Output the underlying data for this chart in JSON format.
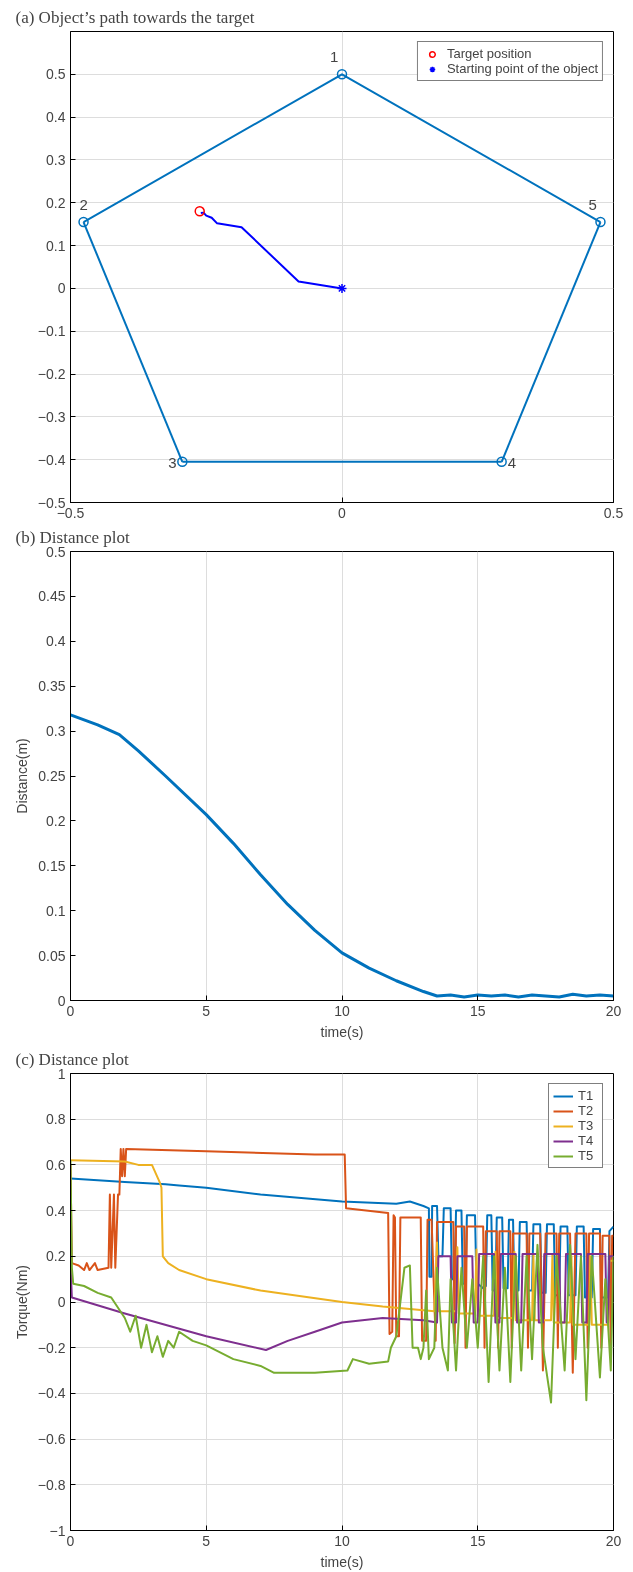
{
  "chart_data": [
    {
      "type": "line",
      "title": "(a) Object’s path towards the target",
      "xlim": [
        -0.5,
        0.5
      ],
      "ylim": [
        -0.5,
        0.6
      ],
      "xticks": [
        {
          "value": -0.5,
          "label": "−0.5"
        },
        0,
        0.5
      ],
      "yticks": [
        {
          "value": -0.5,
          "label": "−0.5"
        },
        {
          "value": -0.4,
          "label": "−0.4"
        },
        {
          "value": -0.3,
          "label": "−0.3"
        },
        {
          "value": -0.2,
          "label": "−0.2"
        },
        {
          "value": -0.1,
          "label": "−0.1"
        },
        0,
        0.1,
        0.2,
        0.3,
        0.4,
        0.5
      ],
      "grid": true,
      "legend": "top right",
      "series": [
        {
          "type": "line",
          "marker": "none",
          "color": "#0072bd",
          "x": [
            -0.476,
            0,
            0.476
          ],
          "values": [
            0.155,
            0.5,
            0.155
          ]
        },
        {
          "type": "line",
          "marker": "none",
          "color": "#0072bd",
          "x": [
            -0.476,
            -0.294
          ],
          "values": [
            0.155,
            -0.405
          ]
        },
        {
          "type": "line",
          "marker": "none",
          "color": "#0072bd",
          "x": [
            -0.294,
            0.294
          ],
          "values": [
            -0.405,
            -0.405
          ]
        },
        {
          "type": "line",
          "marker": "none",
          "color": "#0072bd",
          "x": [
            0.294,
            0.476
          ],
          "values": [
            -0.405,
            0.155
          ]
        },
        {
          "type": "scatter",
          "marker": "circle",
          "color": "#0072bd",
          "x": [
            0,
            -0.476,
            -0.294,
            0.294,
            0.476
          ],
          "values": [
            0.5,
            0.155,
            -0.405,
            -0.405,
            0.155
          ]
        },
        {
          "type": "line",
          "marker": "none",
          "color": "#0000ff",
          "x": [
            0,
            -0.08,
            -0.185,
            -0.23,
            -0.24,
            -0.25,
            -0.255,
            -0.26
          ],
          "values": [
            0,
            0.016,
            0.143,
            0.152,
            0.165,
            0.17,
            0.177,
            0.176
          ]
        },
        {
          "type": "scatter",
          "marker": "circle",
          "name": "Target position",
          "color": "#ff0000",
          "x": [
            -0.262
          ],
          "values": [
            0.18
          ]
        },
        {
          "type": "scatter",
          "marker": "cross",
          "name": "Starting point of the object",
          "color": "#0000ff",
          "x": [
            0
          ],
          "values": [
            0
          ]
        }
      ],
      "annotations": [
        {
          "text": "1",
          "x": 0,
          "y": 0.5
        },
        {
          "text": "2",
          "x": -0.476,
          "y": 0.155
        },
        {
          "text": "3",
          "x": -0.294,
          "y": -0.405
        },
        {
          "text": "4",
          "x": 0.294,
          "y": -0.405
        },
        {
          "text": "5",
          "x": 0.476,
          "y": 0.155
        }
      ]
    },
    {
      "type": "line",
      "title": "(b) Distance plot",
      "xlabel": "time(s)",
      "ylabel": "Distance(m)",
      "xlim": [
        0,
        20
      ],
      "ylim": [
        0,
        0.5
      ],
      "xticks": [
        0,
        5,
        10,
        15,
        20
      ],
      "yticks": [
        0,
        0.05,
        0.1,
        0.15,
        0.2,
        0.25,
        0.3,
        0.35,
        0.4,
        0.45,
        0.5
      ],
      "grid": "x",
      "series": [
        {
          "color": "#0072bd",
          "x": [
            0,
            1,
            1.8,
            2.5,
            3.5,
            5,
            6,
            7,
            8,
            9,
            10,
            11,
            12,
            13,
            13.5,
            14,
            14.5,
            15,
            15.5,
            16,
            16.5,
            17,
            17.5,
            18,
            18.5,
            19,
            19.5,
            20
          ],
          "values": [
            0.318,
            0.307,
            0.296,
            0.278,
            0.25,
            0.207,
            0.175,
            0.14,
            0.107,
            0.078,
            0.053,
            0.036,
            0.022,
            0.01,
            0.005,
            0.006,
            0.004,
            0.006,
            0.005,
            0.006,
            0.004,
            0.006,
            0.005,
            0.004,
            0.007,
            0.005,
            0.006,
            0.005
          ]
        }
      ]
    },
    {
      "type": "line",
      "title": "(c) Distance plot",
      "xlabel": "time(s)",
      "ylabel": "Torque(Nm)",
      "xlim": [
        0,
        20
      ],
      "ylim": [
        -1,
        1
      ],
      "xticks": [
        0,
        5,
        10,
        15,
        20
      ],
      "yticks": [
        {
          "value": -1,
          "label": "−1"
        },
        {
          "value": -0.8,
          "label": "−0.8"
        },
        {
          "value": -0.6,
          "label": "−0.6"
        },
        {
          "value": -0.4,
          "label": "−0.4"
        },
        {
          "value": -0.2,
          "label": "−0.2"
        },
        0,
        0.2,
        0.4,
        0.6,
        0.8,
        1
      ],
      "grid": true,
      "legend": "top right",
      "series": [
        {
          "name": "T1",
          "color": "#0072bd",
          "x": [
            0,
            2,
            3.5,
            4,
            5,
            7,
            10,
            12,
            12.5,
            13,
            13.2,
            13.22,
            13.3,
            13.32,
            13.5,
            13.55,
            13.7,
            13.75,
            14.0,
            14.05,
            14.15,
            14.2,
            14.4,
            14.45,
            14.55,
            14.6,
            14.9,
            14.95,
            15.0,
            15.2,
            15.3,
            15.35,
            15.5,
            15.55,
            15.65,
            15.7,
            15.9,
            15.95,
            16.1,
            16.15,
            16.3,
            16.35,
            16.5,
            16.55,
            16.8,
            16.85,
            17.0,
            17.05,
            17.3,
            17.35,
            17.5,
            17.55,
            17.8,
            17.85,
            18.0,
            18.05,
            18.3,
            18.35,
            18.6,
            18.65,
            18.9,
            18.95,
            19.2,
            19.25,
            19.5,
            19.55,
            19.8,
            19.85,
            20
          ],
          "values": [
            0.54,
            0.525,
            0.515,
            0.51,
            0.5,
            0.47,
            0.44,
            0.43,
            0.44,
            0.42,
            0.41,
            0.11,
            0.11,
            0.42,
            0.42,
            0.2,
            0.2,
            0.41,
            0.41,
            0.1,
            0.1,
            0.4,
            0.4,
            0.08,
            0.08,
            0.38,
            0.38,
            0.09,
            0.08,
            0.06,
            0.07,
            0.38,
            0.38,
            0.05,
            0.05,
            0.37,
            0.37,
            0.06,
            0.06,
            0.36,
            0.36,
            0.05,
            0.05,
            0.35,
            0.35,
            0.05,
            0.05,
            0.34,
            0.34,
            0.04,
            0.04,
            0.34,
            0.34,
            0.03,
            0.03,
            0.33,
            0.33,
            0.03,
            0.03,
            0.33,
            0.33,
            0.02,
            0.02,
            0.32,
            0.32,
            0.02,
            0.02,
            0.31,
            0.33
          ]
        },
        {
          "name": "T2",
          "color": "#d95319",
          "x": [
            0,
            0.05,
            0.3,
            0.5,
            0.6,
            0.7,
            0.9,
            1.0,
            1.4,
            1.45,
            1.5,
            1.6,
            1.65,
            1.75,
            1.8,
            1.85,
            1.9,
            1.95,
            2.0,
            2.05,
            5,
            9,
            10.1,
            10.15,
            11.7,
            11.75,
            11.85,
            11.9,
            11.95,
            12.0,
            12.1,
            12.15,
            12.9,
            12.95,
            13.1,
            13.15,
            13.3,
            13.45,
            13.5,
            14.1,
            14.15,
            14.2,
            14.5,
            14.55,
            14.6,
            15.2,
            15.25,
            15.3,
            15.7,
            15.75,
            15.8,
            16.2,
            16.25,
            16.3,
            16.8,
            16.85,
            16.9,
            17.3,
            17.4,
            17.5,
            17.9,
            17.95,
            18.0,
            18.4,
            18.5,
            18.6,
            19.0,
            19.05,
            19.1,
            19.5,
            19.55,
            19.6,
            19.85,
            19.9,
            19.95,
            20
          ],
          "values": [
            0.6,
            0.17,
            0.16,
            0.14,
            0.17,
            0.14,
            0.17,
            0.14,
            0.15,
            0.47,
            0.15,
            0.47,
            0.15,
            0.47,
            0.47,
            0.67,
            0.55,
            0.67,
            0.55,
            0.67,
            0.66,
            0.645,
            0.645,
            0.41,
            0.39,
            -0.14,
            -0.13,
            0.38,
            0.37,
            -0.15,
            -0.15,
            0.37,
            0.37,
            -0.17,
            -0.17,
            0.36,
            0.36,
            -0.17,
            0.35,
            0.35,
            -0.18,
            0.33,
            0.33,
            -0.2,
            0.33,
            0.33,
            -0.2,
            0.31,
            0.31,
            -0.2,
            0.31,
            0.31,
            -0.2,
            0.3,
            0.3,
            -0.2,
            0.3,
            0.3,
            -0.3,
            0.3,
            0.3,
            -0.2,
            0.3,
            0.3,
            -0.31,
            0.3,
            0.3,
            -0.2,
            0.3,
            0.3,
            -0.2,
            0.29,
            0.29,
            -0.22,
            0.29,
            0.29
          ]
        },
        {
          "name": "T3",
          "color": "#edb120",
          "x": [
            0,
            2,
            2.5,
            3,
            3.3,
            3.35,
            3.4,
            3.6,
            4,
            5,
            7,
            10,
            11.5,
            13.4,
            13.5,
            13.55,
            14.2,
            14.25,
            14.3,
            14.9,
            14.95,
            15.0,
            15.6,
            15.65,
            15.7,
            16.3,
            16.35,
            16.4,
            17.0,
            17.05,
            17.1,
            17.7,
            17.75,
            17.8,
            18.4,
            18.45,
            18.5,
            19.1,
            19.15,
            19.2,
            19.8,
            19.85,
            20
          ],
          "values": [
            0.62,
            0.615,
            0.6,
            0.6,
            0.52,
            0.5,
            0.2,
            0.17,
            0.14,
            0.1,
            0.05,
            0.0,
            -0.02,
            -0.04,
            0.26,
            -0.04,
            -0.04,
            0.24,
            -0.05,
            -0.05,
            0.23,
            -0.06,
            -0.06,
            0.22,
            -0.07,
            -0.07,
            0.22,
            -0.08,
            -0.08,
            0.21,
            -0.08,
            -0.08,
            0.21,
            -0.09,
            -0.09,
            0.2,
            -0.1,
            -0.1,
            0.2,
            -0.1,
            -0.1,
            0.18,
            0.18
          ]
        },
        {
          "name": "T4",
          "color": "#7e2f8e",
          "x": [
            0,
            0.05,
            2,
            5,
            7.2,
            8,
            9,
            10,
            11.5,
            13,
            13.5,
            13.55,
            14.0,
            14.05,
            14.2,
            14.25,
            14.8,
            14.85,
            15.0,
            15.05,
            15.6,
            15.65,
            15.8,
            15.85,
            16.4,
            16.45,
            16.6,
            16.65,
            17.2,
            17.25,
            17.4,
            17.45,
            18.0,
            18.05,
            18.2,
            18.25,
            18.8,
            18.85,
            19.0,
            19.05,
            19.7,
            19.75,
            19.8,
            19.85,
            20
          ],
          "values": [
            0.17,
            0.02,
            -0.05,
            -0.15,
            -0.21,
            -0.17,
            -0.13,
            -0.09,
            -0.07,
            -0.08,
            -0.09,
            0.2,
            0.2,
            -0.09,
            -0.09,
            0.2,
            0.2,
            -0.09,
            -0.09,
            0.21,
            0.21,
            -0.09,
            -0.09,
            0.21,
            0.21,
            -0.09,
            -0.09,
            0.21,
            0.21,
            -0.09,
            -0.09,
            0.21,
            0.21,
            -0.09,
            -0.09,
            0.21,
            0.21,
            -0.09,
            -0.09,
            0.21,
            0.21,
            -0.09,
            -0.09,
            0.2,
            0.2
          ]
        },
        {
          "name": "T5",
          "color": "#77ac30",
          "x": [
            0,
            0.05,
            0.1,
            0.5,
            1.0,
            1.5,
            2.0,
            2.2,
            2.4,
            2.6,
            2.8,
            3.0,
            3.2,
            3.4,
            3.6,
            3.8,
            4.0,
            4.5,
            5,
            6,
            7,
            7.5,
            9,
            10.2,
            10.4,
            11,
            11.7,
            11.8,
            12.0,
            12.3,
            12.5,
            12.6,
            12.8,
            12.9,
            13.0,
            13.1,
            13.2,
            13.4,
            13.5,
            13.7,
            13.9,
            14.0,
            14.2,
            14.4,
            14.6,
            14.8,
            15.0,
            15.2,
            15.4,
            15.6,
            15.8,
            16.0,
            16.2,
            16.4,
            16.6,
            16.8,
            17.0,
            17.2,
            17.4,
            17.7,
            17.9,
            18.2,
            18.4,
            18.6,
            18.8,
            19.0,
            19.2,
            19.5,
            19.7,
            19.9,
            20
          ],
          "values": [
            0.62,
            0.15,
            0.08,
            0.07,
            0.04,
            0.02,
            -0.07,
            -0.13,
            -0.06,
            -0.2,
            -0.1,
            -0.22,
            -0.15,
            -0.24,
            -0.17,
            -0.2,
            -0.13,
            -0.17,
            -0.19,
            -0.25,
            -0.28,
            -0.31,
            -0.31,
            -0.3,
            -0.25,
            -0.27,
            -0.26,
            -0.2,
            -0.15,
            0.15,
            0.16,
            -0.2,
            -0.2,
            -0.25,
            -0.2,
            0.05,
            -0.25,
            -0.2,
            0.15,
            -0.2,
            -0.3,
            0.1,
            -0.3,
            0.15,
            -0.2,
            0.1,
            -0.2,
            0.2,
            -0.35,
            0.2,
            -0.3,
            0.15,
            -0.35,
            0.2,
            -0.3,
            0.2,
            -0.25,
            0.25,
            -0.2,
            -0.44,
            0.2,
            -0.3,
            0.25,
            -0.25,
            0.2,
            -0.43,
            0.2,
            -0.33,
            0.1,
            -0.3,
            0.2
          ]
        }
      ]
    }
  ]
}
